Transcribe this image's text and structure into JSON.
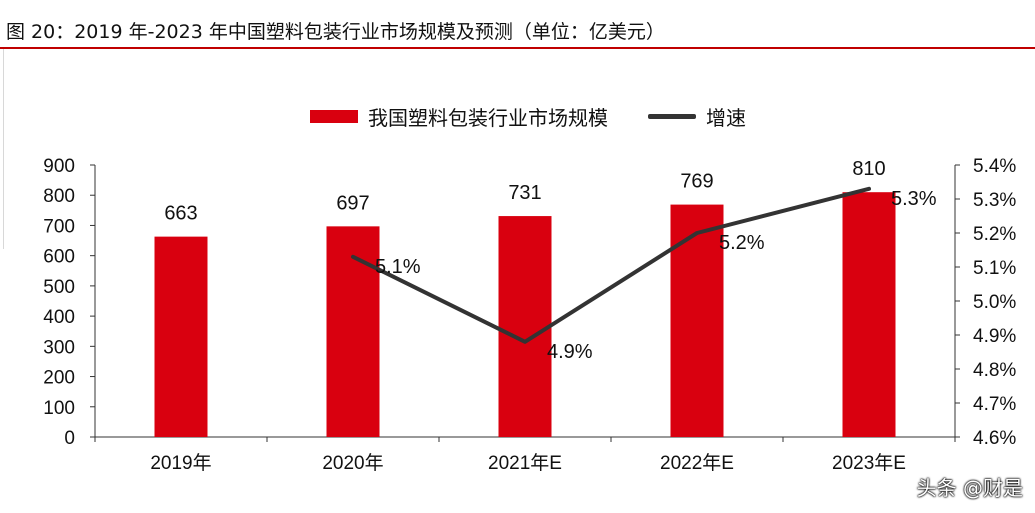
{
  "figure_title": "图 20：2019 年-2023 年中国塑料包装行业市场规模及预测（单位：亿美元）",
  "watermark": "头条 @财是",
  "colors": {
    "bar": "#d9000f",
    "line": "#333333",
    "accent_rule": "#c00000"
  },
  "chart_data": {
    "type": "bar",
    "title": "",
    "xlabel": "",
    "ylabel": "",
    "categories": [
      "2019年",
      "2020年",
      "2021年E",
      "2022年E",
      "2023年E"
    ],
    "legend": {
      "position": "top-center"
    },
    "series": [
      {
        "name": "我国塑料包装行业市场规模",
        "type": "bar",
        "axis": "left",
        "values": [
          663,
          697,
          731,
          769,
          810
        ],
        "data_labels": [
          "663",
          "697",
          "731",
          "769",
          "810"
        ]
      },
      {
        "name": "增速",
        "type": "line",
        "axis": "right",
        "values": [
          null,
          5.13,
          4.88,
          5.2,
          5.33
        ],
        "data_labels": [
          null,
          "5.1%",
          "4.9%",
          "5.2%",
          "5.3%"
        ]
      }
    ],
    "ylim_left": [
      0,
      900
    ],
    "yticks_left": [
      0,
      100,
      200,
      300,
      400,
      500,
      600,
      700,
      800,
      900
    ],
    "ytick_labels_left": [
      "0",
      "100",
      "200",
      "300",
      "400",
      "500",
      "600",
      "700",
      "800",
      "900"
    ],
    "ylim_right": [
      4.6,
      5.4
    ],
    "yticks_right": [
      4.6,
      4.7,
      4.8,
      4.9,
      5.0,
      5.1,
      5.2,
      5.3,
      5.4
    ],
    "ytick_labels_right": [
      "4.6%",
      "4.7%",
      "4.8%",
      "4.9%",
      "5.0%",
      "5.1%",
      "5.2%",
      "5.3%",
      "5.4%"
    ],
    "grid": false
  }
}
